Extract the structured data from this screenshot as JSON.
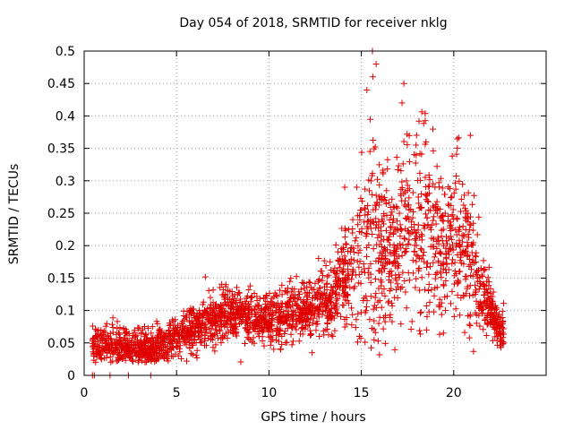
{
  "chart_data": {
    "type": "scatter",
    "title": "Day 054 of 2018, SRMTID for receiver nklg",
    "xlabel": "GPS time / hours",
    "ylabel": "SRMTID / TECUs",
    "xlim": [
      0,
      25
    ],
    "ylim": [
      0,
      0.5
    ],
    "x_ticks": [
      0,
      5,
      10,
      15,
      20
    ],
    "x_tick_labels": [
      "0",
      "5",
      "10",
      "15",
      "20"
    ],
    "y_ticks": [
      0,
      0.05,
      0.1,
      0.15,
      0.2,
      0.25,
      0.3,
      0.35,
      0.4,
      0.45,
      0.5
    ],
    "y_tick_labels": [
      "0",
      "0.05",
      "0.1",
      "0.15",
      "0.2",
      "0.25",
      "0.3",
      "0.35",
      "0.4",
      "0.45",
      "0.5"
    ],
    "grid": true,
    "marker": "plus",
    "color": "#e00000",
    "series": [
      {
        "name": "SRMTID",
        "points_description": "dense cloud of samples between ~0.4 h and ~22.7 h",
        "envelope": [
          {
            "x": 0.5,
            "median": 0.045,
            "spread": 0.015
          },
          {
            "x": 1.5,
            "median": 0.045,
            "spread": 0.02
          },
          {
            "x": 2.5,
            "median": 0.04,
            "spread": 0.02
          },
          {
            "x": 3.5,
            "median": 0.042,
            "spread": 0.02
          },
          {
            "x": 4.5,
            "median": 0.05,
            "spread": 0.02
          },
          {
            "x": 5.5,
            "median": 0.065,
            "spread": 0.025
          },
          {
            "x": 6.5,
            "median": 0.08,
            "spread": 0.025
          },
          {
            "x": 7.5,
            "median": 0.095,
            "spread": 0.025
          },
          {
            "x": 8.5,
            "median": 0.095,
            "spread": 0.025
          },
          {
            "x": 9.5,
            "median": 0.085,
            "spread": 0.025
          },
          {
            "x": 10.5,
            "median": 0.09,
            "spread": 0.025
          },
          {
            "x": 11.5,
            "median": 0.1,
            "spread": 0.03
          },
          {
            "x": 12.5,
            "median": 0.105,
            "spread": 0.03
          },
          {
            "x": 13.5,
            "median": 0.12,
            "spread": 0.035
          },
          {
            "x": 14.5,
            "median": 0.17,
            "spread": 0.06
          },
          {
            "x": 15.5,
            "median": 0.22,
            "spread": 0.12
          },
          {
            "x": 16.5,
            "median": 0.18,
            "spread": 0.08
          },
          {
            "x": 17.5,
            "median": 0.22,
            "spread": 0.1
          },
          {
            "x": 18.5,
            "median": 0.24,
            "spread": 0.1
          },
          {
            "x": 19.5,
            "median": 0.21,
            "spread": 0.08
          },
          {
            "x": 20.5,
            "median": 0.2,
            "spread": 0.09
          },
          {
            "x": 21.5,
            "median": 0.13,
            "spread": 0.04
          },
          {
            "x": 22.5,
            "median": 0.07,
            "spread": 0.02
          }
        ],
        "peaks": [
          {
            "x": 15.6,
            "y": 0.5
          },
          {
            "x": 15.8,
            "y": 0.48
          },
          {
            "x": 17.3,
            "y": 0.45
          },
          {
            "x": 17.2,
            "y": 0.42
          },
          {
            "x": 15.3,
            "y": 0.44
          },
          {
            "x": 18.5,
            "y": 0.36
          },
          {
            "x": 20.9,
            "y": 0.37
          },
          {
            "x": 14.1,
            "y": 0.29
          }
        ],
        "zero_points": [
          0.45,
          0.55,
          1.4,
          2.4,
          3.6
        ]
      }
    ]
  }
}
